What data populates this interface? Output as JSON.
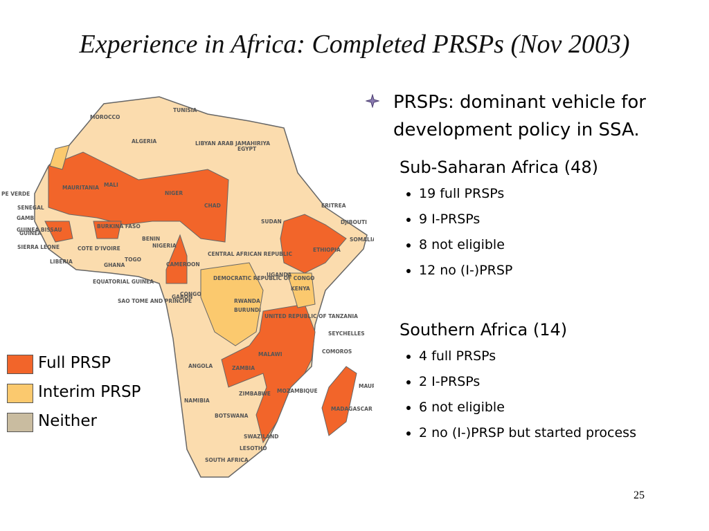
{
  "title": "Experience in Africa: Completed PRSPs (Nov 2003)",
  "lead": "PRSPs: dominant vehicle for development policy in SSA.",
  "sections": [
    {
      "heading": "Sub-Saharan Africa (48)",
      "items": [
        "19 full PRSPs",
        "9 I-PRSPs",
        "8 not eligible",
        "12 no (I-)PRSP"
      ]
    },
    {
      "heading": "Southern Africa (14)",
      "items": [
        "4 full PRSPs",
        "2 I-PRSPs",
        "6 not eligible",
        "2 no (I-)PRSP but started process"
      ]
    }
  ],
  "legend": [
    {
      "label": "Full PRSP",
      "color": "#f2652a"
    },
    {
      "label": "Interim PRSP",
      "color": "#fbc96e"
    },
    {
      "label": "Neither",
      "color": "#c9bca0"
    }
  ],
  "map_labels": [
    "MOROCCO",
    "TUNISIA",
    "ALGERIA",
    "LIBYAN ARAB JAMAHIRIYA",
    "EGYPT",
    "MAURITANIA",
    "MALI",
    "NIGER",
    "CHAD",
    "SUDAN",
    "ERITREA",
    "DJIBOUTI",
    "SOMALIA",
    "ETHIOPIA",
    "PE VERDE",
    "SENEGAL",
    "GAMB",
    "GUINEA BISSAU",
    "GUINEA",
    "SIERRA LEONE",
    "LIBERIA",
    "COTE D'IVOIRE",
    "BURKINA FASO",
    "GHANA",
    "TOGO",
    "BENIN",
    "NIGERIA",
    "CAMEROON",
    "CENTRAL AFRICAN REPUBLIC",
    "EQUATORIAL GUINEA",
    "SAO TOME AND PRINCIPE",
    "GABON",
    "CONGO",
    "DEMOCRATIC REPUBLIC OF CONGO",
    "UGANDA",
    "KENYA",
    "RWANDA",
    "BURUNDI",
    "UNITED REPUBLIC OF TANZANIA",
    "SEYCHELLES",
    "COMOROS",
    "MALAWI",
    "ZAMBIA",
    "ANGOLA",
    "MOZAMBIQUE",
    "MAURITIUS",
    "MADAGASCAR",
    "NAMIBIA",
    "ZIMBABWE",
    "BOTSWANA",
    "SWAZILAND",
    "LESOTHO",
    "SOUTH AFRICA"
  ],
  "page_number": "25"
}
